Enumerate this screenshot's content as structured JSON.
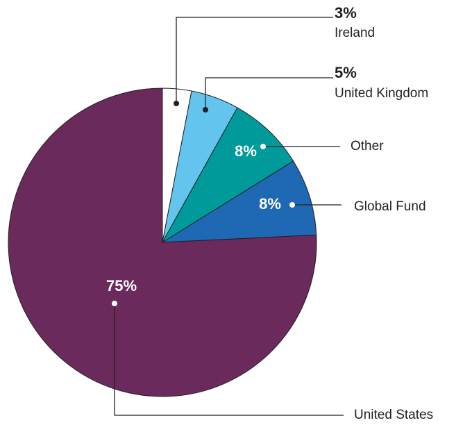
{
  "chart_data": {
    "type": "pie",
    "categories": [
      "Ireland",
      "United Kingdom",
      "Other",
      "Global Fund",
      "United States"
    ],
    "values": [
      3,
      5,
      8,
      8,
      75
    ],
    "value_labels": [
      "3%",
      "5%",
      "8%",
      "8%",
      "75%"
    ],
    "colors": [
      "#ffffff",
      "#63c5ee",
      "#009a9a",
      "#1f69b4",
      "#6a2a5c"
    ]
  }
}
